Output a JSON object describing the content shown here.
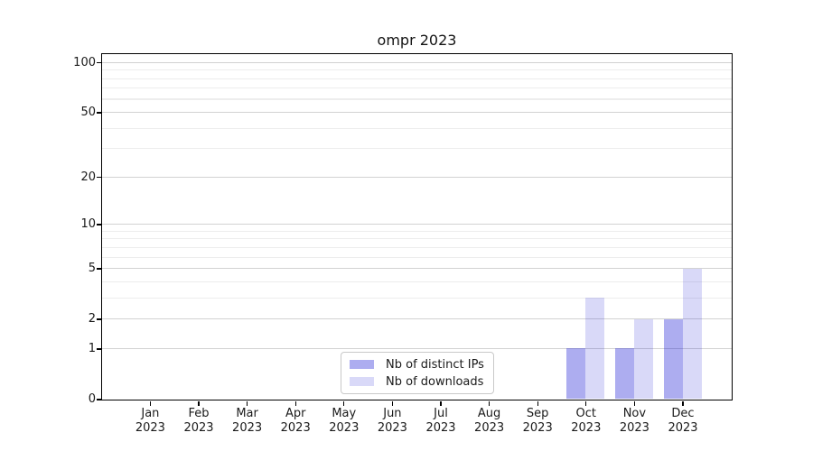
{
  "chart_data": {
    "type": "bar",
    "title": "ompr 2023",
    "categories": [
      "Jan 2023",
      "Feb 2023",
      "Mar 2023",
      "Apr 2023",
      "May 2023",
      "Jun 2023",
      "Jul 2023",
      "Aug 2023",
      "Sep 2023",
      "Oct 2023",
      "Nov 2023",
      "Dec 2023"
    ],
    "series": [
      {
        "name": "Nb of distinct IPs",
        "color": "rgba(21,21,213,0.35)",
        "values": [
          0,
          0,
          0,
          0,
          0,
          0,
          0,
          0,
          0,
          1,
          1,
          2
        ]
      },
      {
        "name": "Nb of downloads",
        "color": "rgba(21,21,213,0.16)",
        "values": [
          0,
          0,
          0,
          0,
          0,
          0,
          0,
          0,
          0,
          3,
          2,
          5
        ]
      }
    ],
    "xlabel": "",
    "ylabel": "",
    "y_axis": {
      "scale": "log1p",
      "major_ticks": [
        0,
        1,
        2,
        5,
        10,
        20,
        50,
        100
      ],
      "minor_ticks": [
        3,
        4,
        6,
        7,
        8,
        9,
        30,
        40,
        60,
        70,
        80,
        90
      ],
      "range_max": 113
    },
    "grid": true,
    "legend_position": "lower center"
  },
  "colors": {
    "bar_distinct_ips": "rgba(21,21,213,0.35)",
    "bar_downloads": "rgba(21,21,213,0.16)",
    "grid_major": "#d2d2d2",
    "grid_minor": "#ededed",
    "spine": "#000000",
    "text": "#1a1a1a"
  }
}
